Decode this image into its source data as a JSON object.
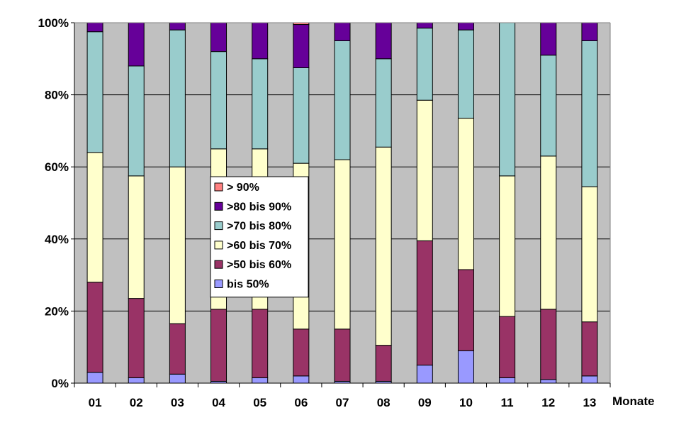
{
  "chart_data": {
    "type": "bar",
    "stacked": true,
    "normalized": true,
    "title": "",
    "xlabel": "Monate",
    "ylabel": "",
    "ylim": [
      0,
      100
    ],
    "yticks": [
      "0%",
      "20%",
      "40%",
      "60%",
      "80%",
      "100%"
    ],
    "grid": true,
    "legend_placement": "center",
    "plot_background": "#C0C0C0",
    "categories": [
      "01",
      "02",
      "03",
      "04",
      "05",
      "06",
      "07",
      "08",
      "09",
      "10",
      "11",
      "12",
      "13"
    ],
    "series": [
      {
        "name": "bis 50%",
        "color": "#9999FF",
        "values": [
          3,
          1.5,
          2.5,
          0.5,
          1.5,
          2,
          0.5,
          0.5,
          5,
          9,
          1.5,
          1,
          2
        ]
      },
      {
        "name": ">50 bis 60%",
        "color": "#993366",
        "values": [
          25,
          22,
          14,
          20,
          19,
          13,
          14.5,
          10,
          34.5,
          22.5,
          17,
          19.5,
          15
        ]
      },
      {
        "name": ">60 bis 70%",
        "color": "#FFFFCC",
        "values": [
          36,
          34,
          43.5,
          44.5,
          44.5,
          46,
          47,
          55,
          39,
          42,
          39,
          42.5,
          37.5
        ]
      },
      {
        "name": ">70 bis 80%",
        "color": "#99CCCC",
        "values": [
          33.5,
          30.5,
          38,
          27,
          25,
          26.5,
          33,
          24.5,
          20,
          24.5,
          42.5,
          28,
          40.5
        ]
      },
      {
        "name": ">80 bis 90%",
        "color": "#660099",
        "values": [
          2.5,
          12,
          2,
          8,
          10,
          12,
          5,
          10,
          1.5,
          2,
          0,
          9,
          5
        ]
      },
      {
        "name": "> 90%",
        "color": "#FF8080",
        "values": [
          0,
          0,
          0,
          0,
          0,
          0.5,
          0,
          0,
          0,
          0,
          0,
          0,
          0
        ]
      }
    ],
    "legend_order": [
      "> 90%",
      ">80 bis 90%",
      ">70 bis 80%",
      ">60 bis 70%",
      ">50 bis 60%",
      "bis 50%"
    ]
  }
}
